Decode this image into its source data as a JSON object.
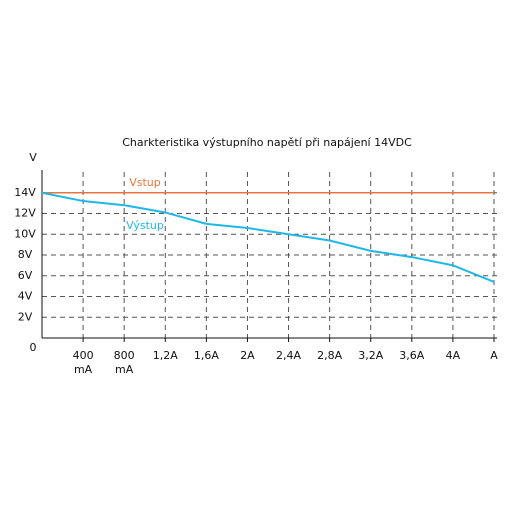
{
  "chart_data": {
    "type": "line",
    "title": "Charkteristika výstupního napětí při napájení 14VDC",
    "y_label": "V",
    "x": [
      0,
      0.4,
      0.8,
      1.2,
      1.6,
      2.0,
      2.4,
      2.8,
      3.2,
      3.6,
      4.0,
      4.4
    ],
    "series": [
      {
        "name": "Vstup",
        "color": "#e8743b",
        "values": [
          14,
          14,
          14,
          14,
          14,
          14,
          14,
          14,
          14,
          14,
          14,
          14
        ]
      },
      {
        "name": "Výstup",
        "color": "#1fb8e8",
        "values": [
          14,
          13.2,
          12.8,
          12.1,
          11.0,
          10.6,
          10.0,
          9.4,
          8.4,
          7.8,
          7.0,
          5.4
        ]
      }
    ],
    "xlim": [
      0,
      4.4
    ],
    "ylim": [
      0,
      16
    ],
    "xticks": [
      {
        "value": 0.4,
        "label": "400 mA"
      },
      {
        "value": 0.8,
        "label": "800 mA"
      },
      {
        "value": 1.2,
        "label": "1,2A"
      },
      {
        "value": 1.6,
        "label": "1,6A"
      },
      {
        "value": 2,
        "label": "2A"
      },
      {
        "value": 2.4,
        "label": "2,4A"
      },
      {
        "value": 2.8,
        "label": "2,8A"
      },
      {
        "value": 3.2,
        "label": "3,2A"
      },
      {
        "value": 3.6,
        "label": "3,6A"
      },
      {
        "value": 4,
        "label": "4A"
      },
      {
        "value": 4.4,
        "label": "A"
      }
    ],
    "yticks": [
      0,
      {
        "value": 2,
        "label": "2V"
      },
      {
        "value": 4,
        "label": "4V"
      },
      {
        "value": 6,
        "label": "6V"
      },
      {
        "value": 8,
        "label": "8V"
      },
      {
        "value": 10,
        "label": "10V"
      },
      {
        "value": 12,
        "label": "12V"
      },
      {
        "value": 14,
        "label": "14V"
      }
    ],
    "grid": true
  }
}
